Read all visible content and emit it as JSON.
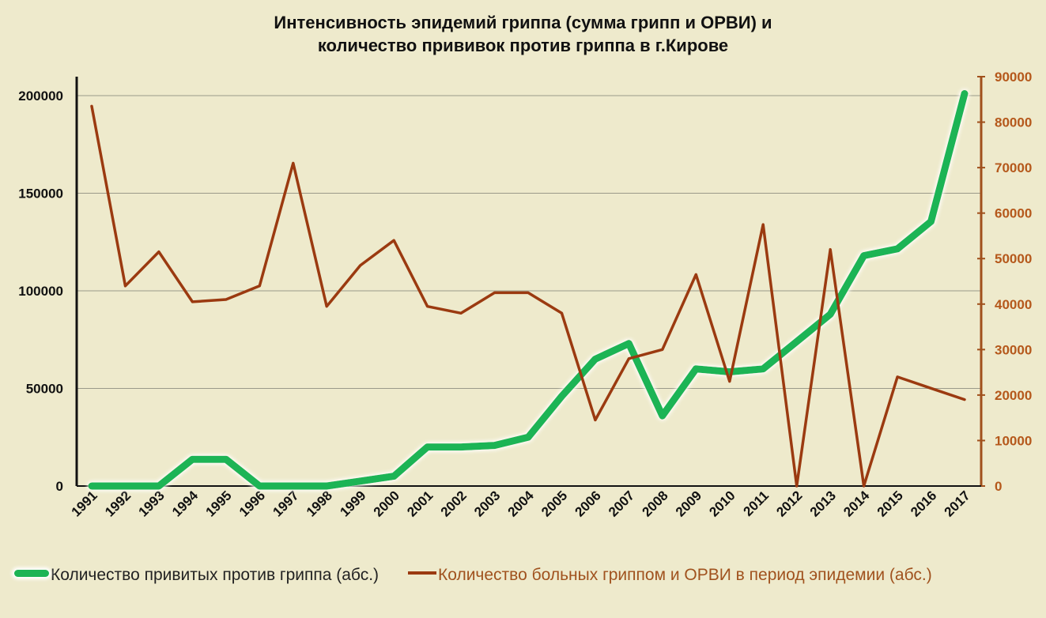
{
  "title_line1": "Интенсивность эпидемий гриппа (сумма грипп и ОРВИ) и",
  "title_line2": "количество прививок против гриппа в г.Кирове",
  "legend": {
    "series1": "Количество привитых против гриппа (абс.)",
    "series2": "Количество больных гриппом и ОРВИ в период эпидемии (абс.)"
  },
  "colors": {
    "background": "#eeeacc",
    "vaccinated": "#1cb454",
    "sick": "#9b3a10",
    "right_axis": "#b5581b"
  },
  "chart_data": {
    "type": "line",
    "title": "Интенсивность эпидемий гриппа (сумма грипп и ОРВИ) и количество прививок против гриппа в г.Кирове",
    "categories": [
      "1991",
      "1992",
      "1993",
      "1994",
      "1995",
      "1996",
      "1997",
      "1998",
      "1999",
      "2000",
      "2001",
      "2002",
      "2003",
      "2004",
      "2005",
      "2006",
      "2007",
      "2008",
      "2009",
      "2010",
      "2011",
      "2012",
      "2013",
      "2014",
      "2015",
      "2016",
      "2017"
    ],
    "y_left": {
      "range": [
        0,
        200000
      ],
      "ticks": [
        "0",
        "50000",
        "100000",
        "150000",
        "200000"
      ]
    },
    "y_right": {
      "range": [
        0,
        90000
      ],
      "ticks": [
        "0",
        "10000",
        "20000",
        "30000",
        "40000",
        "50000",
        "60000",
        "70000",
        "80000",
        "90000"
      ]
    },
    "grid": true,
    "legend_position": "bottom",
    "series": [
      {
        "name": "Количество привитых против гриппа (абс.)",
        "axis": "left",
        "values": [
          0,
          0,
          0,
          13700,
          13700,
          0,
          0,
          0,
          2500,
          5000,
          20000,
          20000,
          20800,
          25000,
          46000,
          65000,
          73000,
          36000,
          60000,
          58500,
          60000,
          74000,
          88000,
          118000,
          121500,
          135500,
          201000
        ]
      },
      {
        "name": "Количество больных гриппом и ОРВИ в период эпидемии (абс.)",
        "axis": "right",
        "values": [
          83500,
          44000,
          51500,
          40500,
          41000,
          44000,
          71000,
          39500,
          48500,
          54000,
          39500,
          38000,
          42500,
          42500,
          38000,
          14500,
          28000,
          30000,
          46500,
          23000,
          57500,
          0,
          52000,
          0,
          24000,
          21500,
          19000
        ]
      }
    ]
  }
}
